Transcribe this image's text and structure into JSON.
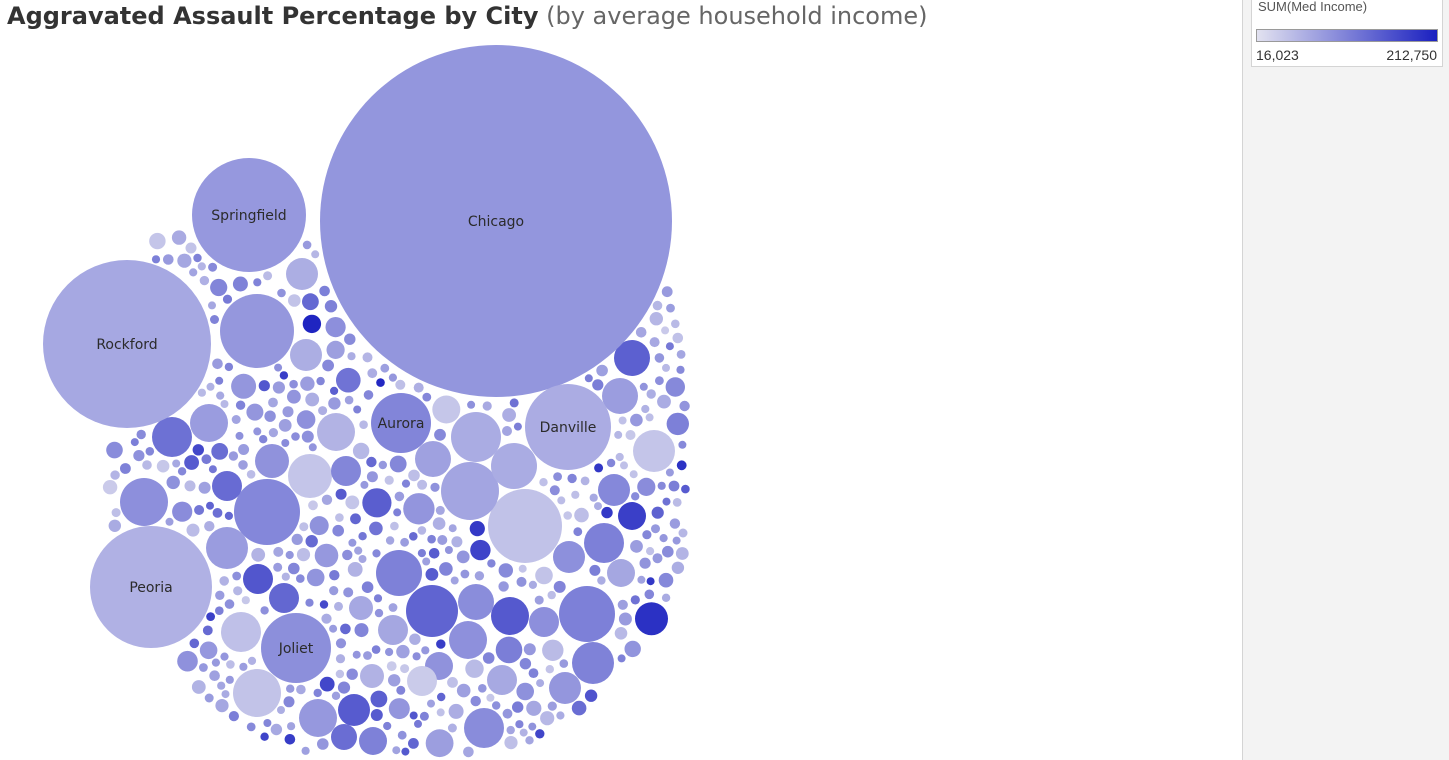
{
  "title": {
    "main": "Aggravated Assault Percentage by City",
    "sub": "(by average household income)"
  },
  "legend": {
    "title": "SUM(Med Income)",
    "min_label": "16,023",
    "max_label": "212,750",
    "min_value": 16023,
    "max_value": 212750,
    "color_low": "#e2e2f0",
    "color_high": "#1a20c0"
  },
  "chart_data": {
    "type": "packed-bubble",
    "title": "Aggravated Assault Percentage by City",
    "subtitle": "(by average household income)",
    "size_measure": "Aggravated Assault Percentage",
    "color_measure": "SUM(Med Income)",
    "color_range": [
      16023,
      212750
    ],
    "cities": [
      {
        "name": "Chicago",
        "label": "Chicago",
        "income": 52000
      },
      {
        "name": "Rockford",
        "label": "Rockford",
        "income": 38000
      },
      {
        "name": "Peoria",
        "label": "Peoria",
        "income": 32000
      },
      {
        "name": "Springfield",
        "label": "Springfield",
        "income": 50000
      },
      {
        "name": "Danville",
        "label": "Danville",
        "income": 35000
      },
      {
        "name": "Joliet",
        "label": "Joliet",
        "income": 58000
      },
      {
        "name": "Aurora",
        "label": "Aurora",
        "income": 68000
      }
    ]
  }
}
